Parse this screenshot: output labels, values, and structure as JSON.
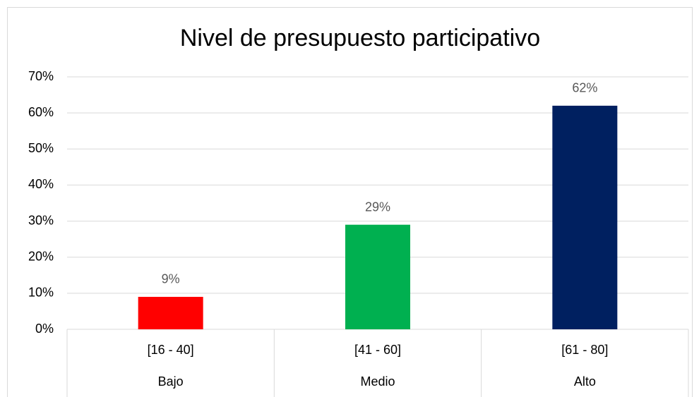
{
  "chart_data": {
    "type": "bar",
    "title": "Nivel de presupuesto participativo",
    "categories": [
      "[16 - 40]",
      "[41 - 60]",
      "[61 - 80]"
    ],
    "category_groups": [
      "Bajo",
      "Medio",
      "Alto"
    ],
    "values": [
      9,
      29,
      62
    ],
    "value_labels": [
      "9%",
      "29%",
      "62%"
    ],
    "colors": [
      "#ff0000",
      "#00b050",
      "#002060"
    ],
    "ylim": [
      0,
      70
    ],
    "yticks": [
      {
        "value": 0,
        "label": "0%"
      },
      {
        "value": 10,
        "label": "10%"
      },
      {
        "value": 20,
        "label": "20%"
      },
      {
        "value": 30,
        "label": "30%"
      },
      {
        "value": 40,
        "label": "40%"
      },
      {
        "value": 50,
        "label": "50%"
      },
      {
        "value": 60,
        "label": "60%"
      },
      {
        "value": 70,
        "label": "70%"
      }
    ],
    "grid": true
  }
}
